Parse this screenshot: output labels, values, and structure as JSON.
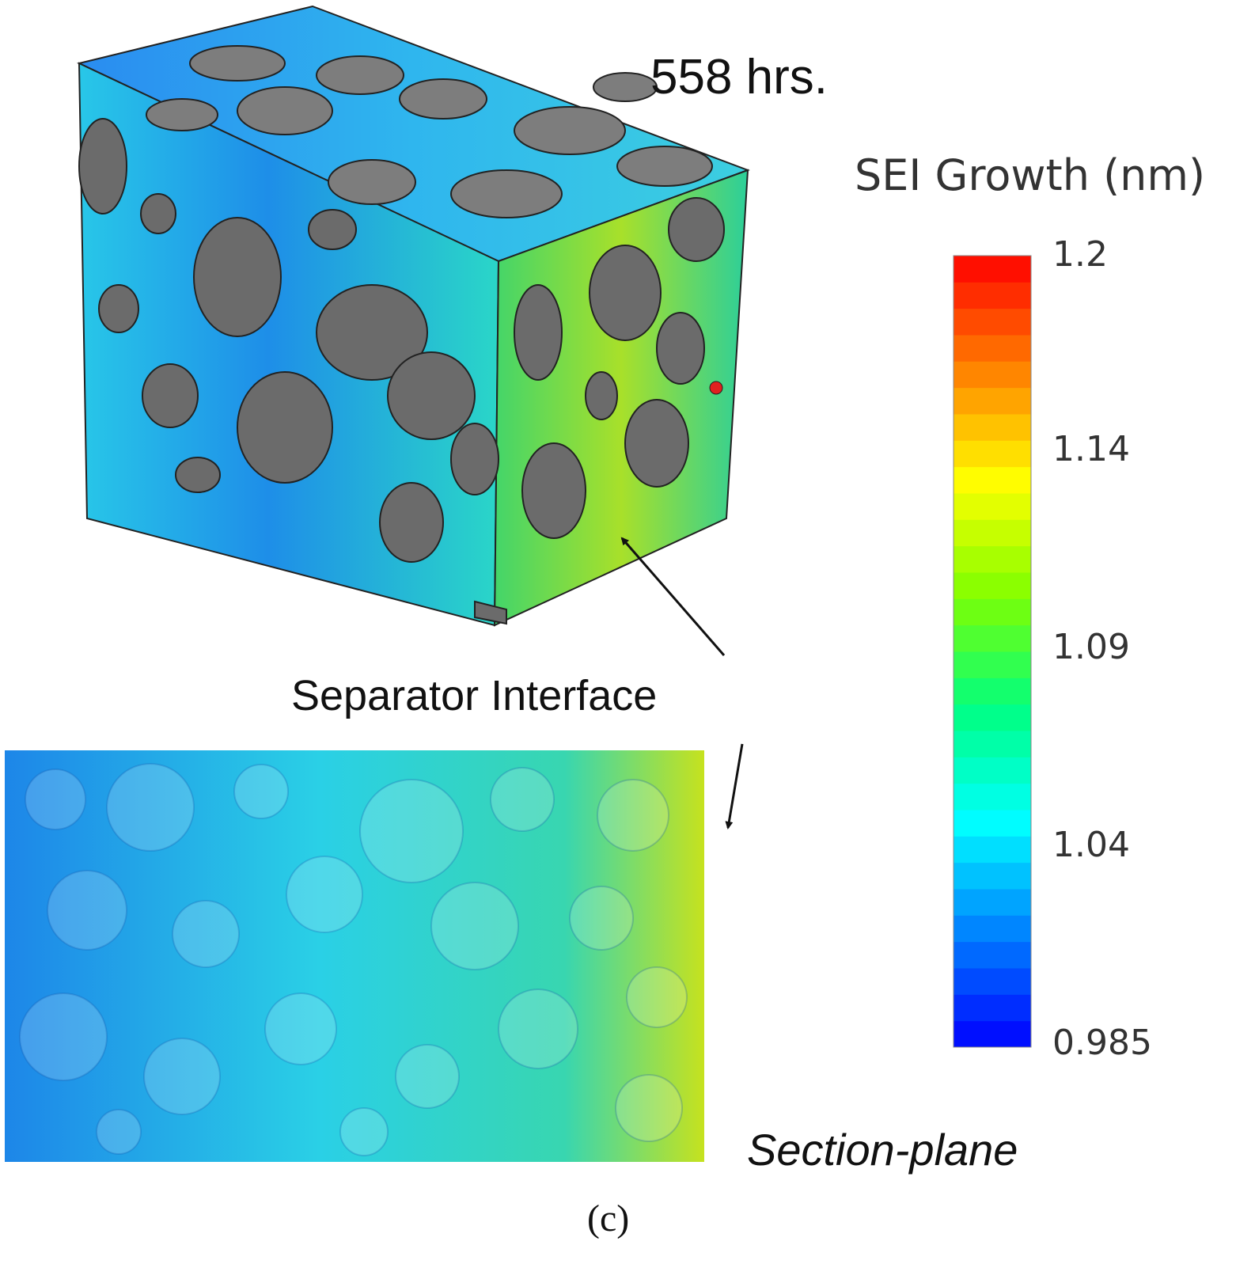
{
  "figure": {
    "time_label": "558 hrs.",
    "panel_label": "(c)",
    "annotations": {
      "separator_interface": "Separator Interface",
      "section_plane": "Section-plane"
    }
  },
  "colorbar": {
    "title": "SEI Growth (nm)",
    "ticks": [
      "1.2",
      "1.14",
      "1.09",
      "1.04",
      "0.985"
    ],
    "min": 0.985,
    "max": 1.2,
    "bands": 30,
    "colormap": [
      "#0000ff",
      "#0080ff",
      "#00ffff",
      "#00ff80",
      "#80ff00",
      "#ffff00",
      "#ff8000",
      "#ff0000"
    ]
  },
  "colors": {
    "solid_particle": "#6b6b6b",
    "top_face_particle": "#7d7d7d",
    "pore_blue": "#1e78e6",
    "pore_cyan": "#22d2e6",
    "pore_green": "#2ccf4a",
    "pore_yellow": "#d8e81a"
  }
}
